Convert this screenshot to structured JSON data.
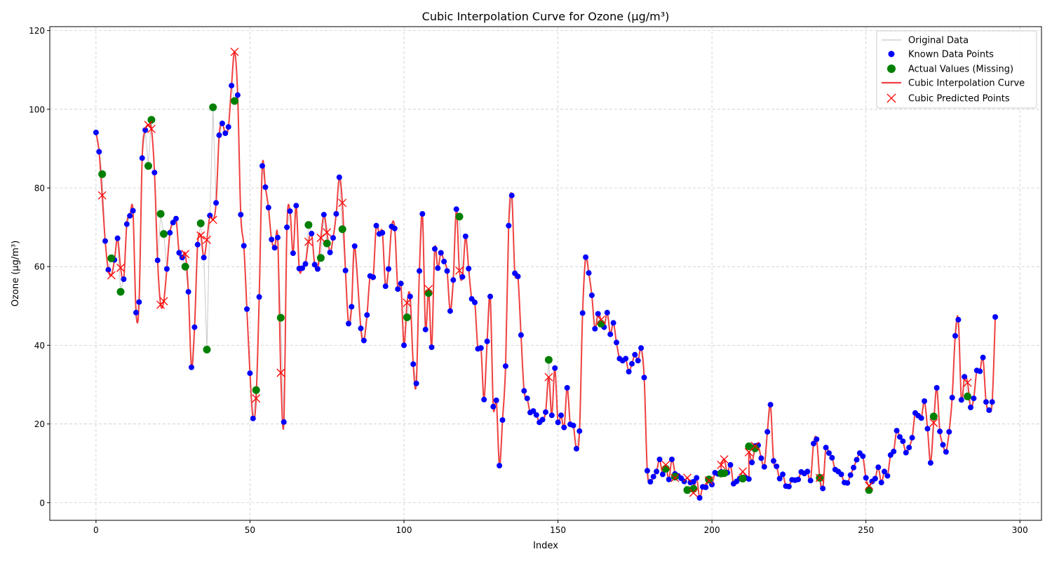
{
  "chart_data": {
    "type": "line",
    "title": "Cubic Interpolation Curve for Ozone (µg/m³)",
    "xlabel": "Index",
    "ylabel": "Ozone (µg/m³)",
    "xlim": [
      -15,
      307
    ],
    "ylim": [
      -4.5,
      121
    ],
    "xticks": [
      0,
      50,
      100,
      150,
      200,
      250,
      300
    ],
    "yticks": [
      0,
      20,
      40,
      60,
      80,
      100,
      120
    ],
    "grid": true,
    "legend_position": "top-right",
    "colors": {
      "original": "#c8c8c8",
      "known": "#0000ff",
      "actual": "#008000",
      "curve": "#f04040",
      "predicted": "#ff0000"
    },
    "legend": [
      {
        "key": "original",
        "label": "Original Data"
      },
      {
        "key": "known",
        "label": "Known Data Points"
      },
      {
        "key": "actual",
        "label": "Actual Values (Missing)"
      },
      {
        "key": "curve",
        "label": "Cubic Interpolation Curve"
      },
      {
        "key": "predicted",
        "label": "Cubic Predicted Points"
      }
    ],
    "known_points": {
      "x": [
        0,
        1,
        3,
        4,
        6,
        7,
        9,
        10,
        11,
        12,
        13,
        14,
        15,
        16,
        19,
        20,
        23,
        24,
        25,
        26,
        27,
        28,
        30,
        31,
        32,
        33,
        35,
        37,
        39,
        40,
        41,
        42,
        43,
        44,
        46,
        47,
        48,
        49,
        50,
        51,
        53,
        54,
        55,
        56,
        57,
        58,
        59,
        61,
        62,
        63,
        64,
        65,
        66,
        67,
        68,
        70,
        71,
        72,
        74,
        76,
        77,
        78,
        79,
        81,
        82,
        83,
        84,
        86,
        87,
        88,
        89,
        90,
        91,
        92,
        93,
        94,
        95,
        96,
        97,
        98,
        99,
        100,
        102,
        103,
        104,
        105,
        106,
        107,
        109,
        110,
        111,
        112,
        113,
        114,
        115,
        116,
        117,
        119,
        120,
        121,
        122,
        123,
        124,
        125,
        126,
        127,
        128,
        129,
        130,
        131,
        132,
        133,
        134,
        135,
        136,
        137,
        138,
        139,
        140,
        141,
        142,
        143,
        144,
        145,
        146,
        148,
        149,
        150,
        151,
        152,
        153,
        154,
        155,
        156,
        157,
        158,
        159,
        160,
        161,
        162,
        163,
        165,
        166,
        167,
        168,
        169,
        170,
        171,
        172,
        173,
        174,
        175,
        176,
        177,
        178,
        179,
        180,
        181,
        182,
        183,
        184,
        186,
        187,
        188,
        189,
        190,
        191,
        193,
        194,
        195,
        196,
        197,
        198,
        200,
        201,
        202,
        203,
        205,
        206,
        207,
        208,
        209,
        211,
        212,
        213,
        214,
        215,
        216,
        217,
        218,
        219,
        220,
        221,
        222,
        223,
        224,
        225,
        226,
        227,
        228,
        229,
        230,
        231,
        232,
        233,
        234,
        236,
        237,
        238,
        239,
        240,
        241,
        242,
        243,
        244,
        245,
        246,
        247,
        248,
        249,
        250,
        252,
        253,
        254,
        255,
        256,
        257,
        258,
        259,
        260,
        261,
        262,
        263,
        264,
        265,
        266,
        267,
        268,
        269,
        270,
        271,
        273,
        274,
        275,
        276,
        277,
        278,
        279,
        280,
        281,
        282,
        284,
        285,
        286,
        287,
        288,
        289,
        290,
        291,
        292
      ],
      "y": [
        94.1,
        89.2,
        66.5,
        59.2,
        61.7,
        67.2,
        56.8,
        70.8,
        72.9,
        74.2,
        48.3,
        51.0,
        87.6,
        94.7,
        83.9,
        61.6,
        59.4,
        68.6,
        71.2,
        72.2,
        63.5,
        62.3,
        53.6,
        34.4,
        44.6,
        65.6,
        62.3,
        73.0,
        76.2,
        93.4,
        96.4,
        93.9,
        95.5,
        106.0,
        103.6,
        73.2,
        65.3,
        49.2,
        32.9,
        21.4,
        52.3,
        85.6,
        80.2,
        75.0,
        66.9,
        64.8,
        67.4,
        20.5,
        70.0,
        74.1,
        63.4,
        75.5,
        59.5,
        59.6,
        60.7,
        68.4,
        60.5,
        59.4,
        73.2,
        63.6,
        67.3,
        73.4,
        82.7,
        59.0,
        45.5,
        49.8,
        65.2,
        44.3,
        41.2,
        47.7,
        57.6,
        57.3,
        70.4,
        68.3,
        68.6,
        55.0,
        59.4,
        70.2,
        69.7,
        54.3,
        55.7,
        40.0,
        52.4,
        35.2,
        30.3,
        58.9,
        73.4,
        44.0,
        39.5,
        64.5,
        59.6,
        63.5,
        61.3,
        58.9,
        48.7,
        56.6,
        74.6,
        57.4,
        67.7,
        59.5,
        51.8,
        50.9,
        39.1,
        39.3,
        26.2,
        41.0,
        52.4,
        24.4,
        26.0,
        9.4,
        21.0,
        34.7,
        70.4,
        78.1,
        58.3,
        57.5,
        42.6,
        28.4,
        26.5,
        22.9,
        23.3,
        22.3,
        20.4,
        21.1,
        23.0,
        22.2,
        34.2,
        20.4,
        22.2,
        19.1,
        29.2,
        19.9,
        19.6,
        13.7,
        18.2,
        48.2,
        62.4,
        58.4,
        52.7,
        44.2,
        48.0,
        44.6,
        48.3,
        42.8,
        45.7,
        40.7,
        36.6,
        36.1,
        36.6,
        33.3,
        35.3,
        37.6,
        36.1,
        39.3,
        31.8,
        8.1,
        5.3,
        6.6,
        7.9,
        11.0,
        7.2,
        5.9,
        11.0,
        7.3,
        6.8,
        6.2,
        5.4,
        5.1,
        5.3,
        6.3,
        1.2,
        4.0,
        3.9,
        4.6,
        7.6,
        7.3,
        7.8,
        7.6,
        9.6,
        4.8,
        5.4,
        6.1,
        6.3,
        6.0,
        10.2,
        14.4,
        14.6,
        11.3,
        9.1,
        18.0,
        24.9,
        10.6,
        9.2,
        6.1,
        7.2,
        4.2,
        4.1,
        5.8,
        5.7,
        5.9,
        7.8,
        7.4,
        7.9,
        5.6,
        15.0,
        16.1,
        3.6,
        14.0,
        12.6,
        11.4,
        8.4,
        7.9,
        7.2,
        5.1,
        5.0,
        7.0,
        8.9,
        10.9,
        12.6,
        11.8,
        6.3,
        5.4,
        6.1,
        9.0,
        5.1,
        7.9,
        6.8,
        12.1,
        13.0,
        18.3,
        16.7,
        15.6,
        12.7,
        14.0,
        16.5,
        22.8,
        22.1,
        21.5,
        25.8,
        18.8,
        10.1,
        29.2,
        18.1,
        14.7,
        12.9,
        18.0,
        26.7,
        42.4,
        46.5,
        26.1,
        32.0,
        24.2,
        26.5,
        33.6,
        33.4,
        36.9,
        25.6,
        23.5,
        25.6,
        47.2
      ]
    },
    "missing_points": {
      "x": [
        2,
        5,
        8,
        17,
        18,
        21,
        22,
        29,
        34,
        36,
        38,
        45,
        52,
        60,
        69,
        73,
        75,
        80,
        101,
        108,
        118,
        147,
        164,
        185,
        188,
        192,
        194,
        199,
        203,
        204,
        210,
        212,
        214,
        235,
        251,
        272,
        283
      ],
      "actual": [
        83.5,
        62.1,
        53.6,
        85.6,
        97.3,
        73.4,
        68.3,
        60.0,
        71.0,
        38.9,
        100.5,
        102.1,
        28.6,
        47.0,
        70.6,
        62.2,
        65.9,
        69.5,
        47.1,
        53.3,
        72.7,
        36.3,
        45.5,
        8.6,
        6.6,
        3.2,
        3.5,
        5.9,
        7.4,
        7.5,
        6.1,
        14.3,
        13.8,
        6.3,
        3.2,
        21.9,
        27.0
      ],
      "predicted": [
        78.1,
        57.8,
        59.7,
        96.0,
        95.0,
        50.3,
        51.2,
        63.2,
        67.9,
        66.8,
        71.9,
        114.6,
        26.5,
        33.0,
        66.3,
        67.3,
        68.7,
        76.2,
        50.8,
        54.3,
        59.0,
        31.9,
        46.5,
        9.6,
        6.3,
        6.3,
        2.5,
        5.6,
        9.6,
        11.0,
        7.9,
        12.8,
        14.4,
        6.3,
        4.3,
        20.3,
        30.5
      ]
    }
  }
}
